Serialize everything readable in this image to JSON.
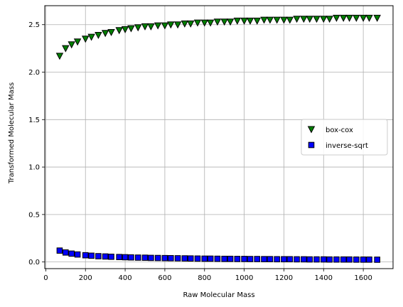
{
  "chart_data": {
    "type": "scatter",
    "xlabel": "Raw Molecular Mass",
    "ylabel": "Transformed Molecular Mass",
    "xlim": [
      -5,
      1750
    ],
    "ylim": [
      -0.07,
      2.7
    ],
    "xticks": [
      0,
      200,
      400,
      600,
      800,
      1000,
      1200,
      1400,
      1600
    ],
    "yticks": [
      0.0,
      0.5,
      1.0,
      1.5,
      2.0,
      2.5
    ],
    "xtick_labels": [
      "0",
      "200",
      "400",
      "600",
      "800",
      "1000",
      "1200",
      "1400",
      "1600"
    ],
    "ytick_labels": [
      "0.0",
      "0.5",
      "1.0",
      "1.5",
      "2.0",
      "2.5"
    ],
    "grid": true,
    "legend_position": "right",
    "x": [
      70,
      100,
      130,
      160,
      200,
      230,
      265,
      300,
      330,
      370,
      400,
      430,
      465,
      500,
      530,
      565,
      600,
      630,
      665,
      700,
      730,
      765,
      800,
      830,
      865,
      900,
      930,
      965,
      1000,
      1030,
      1065,
      1100,
      1130,
      1165,
      1200,
      1230,
      1265,
      1300,
      1330,
      1365,
      1400,
      1430,
      1465,
      1500,
      1530,
      1565,
      1600,
      1630,
      1670
    ],
    "series": [
      {
        "name": "box-cox",
        "marker": "triangle-down",
        "color": "#008000",
        "values": [
          2.17,
          2.25,
          2.29,
          2.32,
          2.35,
          2.37,
          2.39,
          2.41,
          2.42,
          2.44,
          2.45,
          2.46,
          2.47,
          2.48,
          2.48,
          2.49,
          2.49,
          2.5,
          2.5,
          2.51,
          2.51,
          2.52,
          2.52,
          2.52,
          2.53,
          2.53,
          2.53,
          2.54,
          2.54,
          2.54,
          2.54,
          2.55,
          2.55,
          2.55,
          2.55,
          2.55,
          2.56,
          2.56,
          2.56,
          2.56,
          2.56,
          2.56,
          2.57,
          2.57,
          2.57,
          2.57,
          2.57,
          2.57,
          2.57
        ]
      },
      {
        "name": "inverse-sqrt",
        "marker": "square",
        "color": "#0000ff",
        "values": [
          0.12,
          0.1,
          0.088,
          0.079,
          0.071,
          0.066,
          0.061,
          0.058,
          0.055,
          0.052,
          0.05,
          0.048,
          0.046,
          0.045,
          0.043,
          0.042,
          0.041,
          0.04,
          0.039,
          0.038,
          0.037,
          0.036,
          0.035,
          0.035,
          0.034,
          0.033,
          0.033,
          0.032,
          0.032,
          0.031,
          0.031,
          0.03,
          0.03,
          0.029,
          0.029,
          0.029,
          0.028,
          0.028,
          0.027,
          0.027,
          0.027,
          0.026,
          0.026,
          0.026,
          0.026,
          0.025,
          0.025,
          0.025,
          0.024
        ]
      }
    ]
  }
}
